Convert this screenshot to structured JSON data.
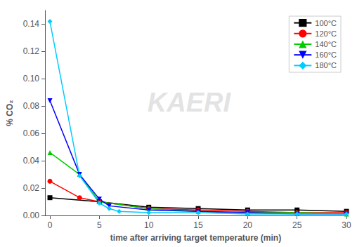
{
  "chart_data": {
    "type": "line",
    "xlabel": "time after arriving target temperature (min)",
    "ylabel": "% CO₂",
    "annotations": [
      "KAERI"
    ],
    "series": [
      {
        "name": "100°C",
        "color": "#000000",
        "marker": "square",
        "x": [
          0,
          5,
          10,
          15,
          20,
          25,
          30
        ],
        "values": [
          0.013,
          0.01,
          0.006,
          0.005,
          0.004,
          0.004,
          0.003
        ]
      },
      {
        "name": "120°C",
        "color": "#ff0000",
        "marker": "circle",
        "x": [
          0,
          3,
          5,
          10,
          15,
          20,
          25,
          30
        ],
        "values": [
          0.025,
          0.013,
          0.01,
          0.005,
          0.004,
          0.003,
          0.002,
          0.002
        ]
      },
      {
        "name": "140°C",
        "color": "#00cc00",
        "marker": "triangle-up",
        "x": [
          0,
          3,
          5,
          10,
          15,
          20,
          25,
          30
        ],
        "values": [
          0.046,
          0.03,
          0.01,
          0.005,
          0.003,
          0.002,
          0.002,
          0.001
        ]
      },
      {
        "name": "160°C",
        "color": "#0000ff",
        "marker": "triangle-down",
        "x": [
          0,
          3,
          5,
          6,
          10,
          15,
          20,
          25,
          30
        ],
        "values": [
          0.084,
          0.03,
          0.012,
          0.007,
          0.004,
          0.003,
          0.002,
          0.001,
          0.001
        ]
      },
      {
        "name": "180°C",
        "color": "#00ccff",
        "marker": "diamond",
        "x": [
          0,
          3,
          5,
          6,
          7,
          10,
          15,
          20,
          25,
          30
        ],
        "values": [
          0.142,
          0.029,
          0.009,
          0.005,
          0.003,
          0.002,
          0.002,
          0.001,
          0.001,
          0.001
        ]
      }
    ],
    "xlim": [
      -0.5,
      30
    ],
    "xticks": [
      0,
      5,
      10,
      15,
      20,
      25,
      30
    ],
    "ylim": [
      0,
      0.15
    ],
    "yticks": [
      {
        "value": 0,
        "label": "0.00"
      },
      0.02,
      0.04,
      0.06,
      0.08,
      {
        "value": 0.1,
        "label": "0.10"
      },
      0.12,
      0.14
    ],
    "legend": "upper right",
    "grid": false
  }
}
